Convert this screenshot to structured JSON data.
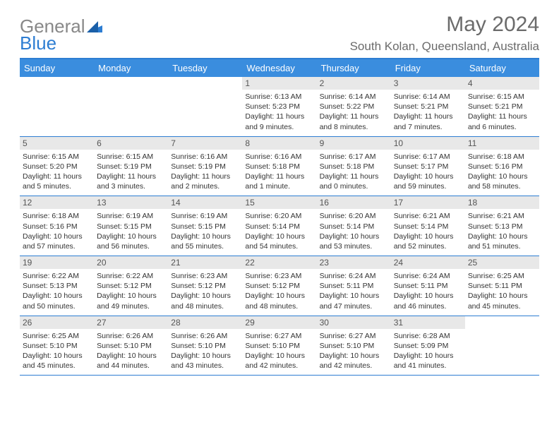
{
  "logo": {
    "text_a": "General",
    "text_b": "Blue"
  },
  "header": {
    "month": "May 2024",
    "location": "South Kolan, Queensland, Australia"
  },
  "colors": {
    "brand": "#2d7dd2",
    "header_bg": "#3a8dde",
    "daybar_bg": "#e8e8e8",
    "text_gray": "#6b6b6b"
  },
  "weekdays": [
    "Sunday",
    "Monday",
    "Tuesday",
    "Wednesday",
    "Thursday",
    "Friday",
    "Saturday"
  ],
  "weeks": [
    [
      {
        "n": "",
        "sr": "",
        "ss": "",
        "d": ""
      },
      {
        "n": "",
        "sr": "",
        "ss": "",
        "d": ""
      },
      {
        "n": "",
        "sr": "",
        "ss": "",
        "d": ""
      },
      {
        "n": "1",
        "sr": "Sunrise: 6:13 AM",
        "ss": "Sunset: 5:23 PM",
        "d": "Daylight: 11 hours and 9 minutes."
      },
      {
        "n": "2",
        "sr": "Sunrise: 6:14 AM",
        "ss": "Sunset: 5:22 PM",
        "d": "Daylight: 11 hours and 8 minutes."
      },
      {
        "n": "3",
        "sr": "Sunrise: 6:14 AM",
        "ss": "Sunset: 5:21 PM",
        "d": "Daylight: 11 hours and 7 minutes."
      },
      {
        "n": "4",
        "sr": "Sunrise: 6:15 AM",
        "ss": "Sunset: 5:21 PM",
        "d": "Daylight: 11 hours and 6 minutes."
      }
    ],
    [
      {
        "n": "5",
        "sr": "Sunrise: 6:15 AM",
        "ss": "Sunset: 5:20 PM",
        "d": "Daylight: 11 hours and 5 minutes."
      },
      {
        "n": "6",
        "sr": "Sunrise: 6:15 AM",
        "ss": "Sunset: 5:19 PM",
        "d": "Daylight: 11 hours and 3 minutes."
      },
      {
        "n": "7",
        "sr": "Sunrise: 6:16 AM",
        "ss": "Sunset: 5:19 PM",
        "d": "Daylight: 11 hours and 2 minutes."
      },
      {
        "n": "8",
        "sr": "Sunrise: 6:16 AM",
        "ss": "Sunset: 5:18 PM",
        "d": "Daylight: 11 hours and 1 minute."
      },
      {
        "n": "9",
        "sr": "Sunrise: 6:17 AM",
        "ss": "Sunset: 5:18 PM",
        "d": "Daylight: 11 hours and 0 minutes."
      },
      {
        "n": "10",
        "sr": "Sunrise: 6:17 AM",
        "ss": "Sunset: 5:17 PM",
        "d": "Daylight: 10 hours and 59 minutes."
      },
      {
        "n": "11",
        "sr": "Sunrise: 6:18 AM",
        "ss": "Sunset: 5:16 PM",
        "d": "Daylight: 10 hours and 58 minutes."
      }
    ],
    [
      {
        "n": "12",
        "sr": "Sunrise: 6:18 AM",
        "ss": "Sunset: 5:16 PM",
        "d": "Daylight: 10 hours and 57 minutes."
      },
      {
        "n": "13",
        "sr": "Sunrise: 6:19 AM",
        "ss": "Sunset: 5:15 PM",
        "d": "Daylight: 10 hours and 56 minutes."
      },
      {
        "n": "14",
        "sr": "Sunrise: 6:19 AM",
        "ss": "Sunset: 5:15 PM",
        "d": "Daylight: 10 hours and 55 minutes."
      },
      {
        "n": "15",
        "sr": "Sunrise: 6:20 AM",
        "ss": "Sunset: 5:14 PM",
        "d": "Daylight: 10 hours and 54 minutes."
      },
      {
        "n": "16",
        "sr": "Sunrise: 6:20 AM",
        "ss": "Sunset: 5:14 PM",
        "d": "Daylight: 10 hours and 53 minutes."
      },
      {
        "n": "17",
        "sr": "Sunrise: 6:21 AM",
        "ss": "Sunset: 5:14 PM",
        "d": "Daylight: 10 hours and 52 minutes."
      },
      {
        "n": "18",
        "sr": "Sunrise: 6:21 AM",
        "ss": "Sunset: 5:13 PM",
        "d": "Daylight: 10 hours and 51 minutes."
      }
    ],
    [
      {
        "n": "19",
        "sr": "Sunrise: 6:22 AM",
        "ss": "Sunset: 5:13 PM",
        "d": "Daylight: 10 hours and 50 minutes."
      },
      {
        "n": "20",
        "sr": "Sunrise: 6:22 AM",
        "ss": "Sunset: 5:12 PM",
        "d": "Daylight: 10 hours and 49 minutes."
      },
      {
        "n": "21",
        "sr": "Sunrise: 6:23 AM",
        "ss": "Sunset: 5:12 PM",
        "d": "Daylight: 10 hours and 48 minutes."
      },
      {
        "n": "22",
        "sr": "Sunrise: 6:23 AM",
        "ss": "Sunset: 5:12 PM",
        "d": "Daylight: 10 hours and 48 minutes."
      },
      {
        "n": "23",
        "sr": "Sunrise: 6:24 AM",
        "ss": "Sunset: 5:11 PM",
        "d": "Daylight: 10 hours and 47 minutes."
      },
      {
        "n": "24",
        "sr": "Sunrise: 6:24 AM",
        "ss": "Sunset: 5:11 PM",
        "d": "Daylight: 10 hours and 46 minutes."
      },
      {
        "n": "25",
        "sr": "Sunrise: 6:25 AM",
        "ss": "Sunset: 5:11 PM",
        "d": "Daylight: 10 hours and 45 minutes."
      }
    ],
    [
      {
        "n": "26",
        "sr": "Sunrise: 6:25 AM",
        "ss": "Sunset: 5:10 PM",
        "d": "Daylight: 10 hours and 45 minutes."
      },
      {
        "n": "27",
        "sr": "Sunrise: 6:26 AM",
        "ss": "Sunset: 5:10 PM",
        "d": "Daylight: 10 hours and 44 minutes."
      },
      {
        "n": "28",
        "sr": "Sunrise: 6:26 AM",
        "ss": "Sunset: 5:10 PM",
        "d": "Daylight: 10 hours and 43 minutes."
      },
      {
        "n": "29",
        "sr": "Sunrise: 6:27 AM",
        "ss": "Sunset: 5:10 PM",
        "d": "Daylight: 10 hours and 42 minutes."
      },
      {
        "n": "30",
        "sr": "Sunrise: 6:27 AM",
        "ss": "Sunset: 5:10 PM",
        "d": "Daylight: 10 hours and 42 minutes."
      },
      {
        "n": "31",
        "sr": "Sunrise: 6:28 AM",
        "ss": "Sunset: 5:09 PM",
        "d": "Daylight: 10 hours and 41 minutes."
      },
      {
        "n": "",
        "sr": "",
        "ss": "",
        "d": ""
      }
    ]
  ]
}
